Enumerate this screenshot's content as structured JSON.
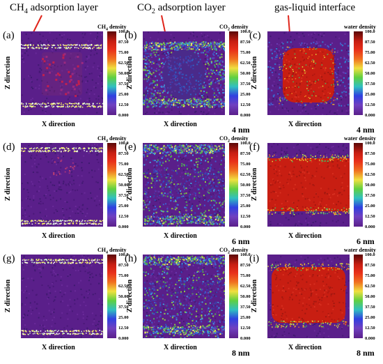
{
  "top_labels": [
    {
      "pre": "CH",
      "sub": "4",
      "post": " adsorption layer"
    },
    {
      "pre": "CO",
      "sub": "2",
      "post": " adsorption layer"
    },
    {
      "pre": "gas-liquid interface",
      "sub": "",
      "post": ""
    }
  ],
  "axis": {
    "x": "X direction",
    "z": "Z direction"
  },
  "colorbar": {
    "titles": {
      "ch4": {
        "pre": "CH",
        "sub": "4",
        "post": " density"
      },
      "co2": {
        "pre": "CO",
        "sub": "2",
        "post": " density"
      },
      "water": {
        "pre": "water density",
        "sub": "",
        "post": ""
      }
    },
    "ticks": [
      "100.0",
      "87.50",
      "75.00",
      "62.50",
      "50.00",
      "37.50",
      "25.00",
      "12.50",
      "0.000"
    ]
  },
  "rows": [
    {
      "size": "4 nm",
      "panels": [
        {
          "letter": "(a)",
          "species": "ch4"
        },
        {
          "letter": "(b)",
          "species": "co2"
        },
        {
          "letter": "(c)",
          "species": "water"
        }
      ]
    },
    {
      "size": "6 nm",
      "panels": [
        {
          "letter": "(d)",
          "species": "ch4"
        },
        {
          "letter": "(e)",
          "species": "co2"
        },
        {
          "letter": "(f)",
          "species": "water"
        }
      ]
    },
    {
      "size": "8 nm",
      "panels": [
        {
          "letter": "(g)",
          "species": "ch4"
        },
        {
          "letter": "(h)",
          "species": "co2"
        },
        {
          "letter": "(i)",
          "species": "water"
        }
      ]
    }
  ],
  "colors": {
    "background": "#5a1f8a",
    "water_liquid": "#c81e12",
    "annotation_arrow": "#e0251b"
  }
}
